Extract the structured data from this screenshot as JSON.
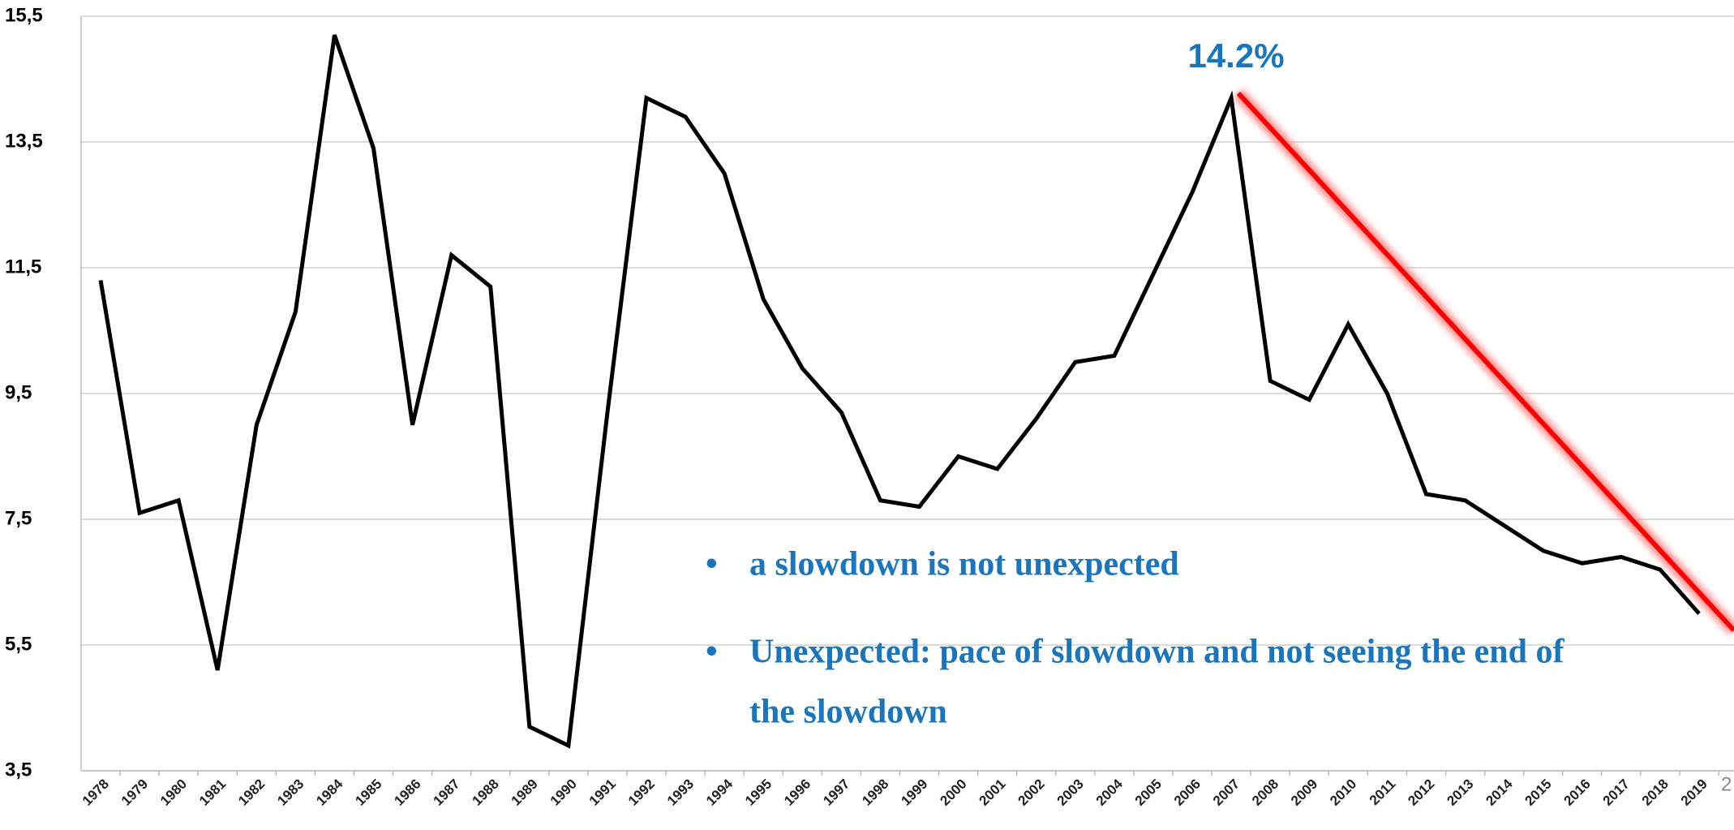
{
  "chart_data": {
    "type": "line",
    "categories": [
      "1978",
      "1979",
      "1980",
      "1981",
      "1982",
      "1983",
      "1984",
      "1985",
      "1986",
      "1987",
      "1988",
      "1989",
      "1990",
      "1991",
      "1992",
      "1993",
      "1994",
      "1995",
      "1996",
      "1997",
      "1998",
      "1999",
      "2000",
      "2001",
      "2002",
      "2003",
      "2004",
      "2005",
      "2006",
      "2007",
      "2008",
      "2009",
      "2010",
      "2011",
      "2012",
      "2013",
      "2014",
      "2015",
      "2016",
      "2017",
      "2018",
      "2019"
    ],
    "series": [
      {
        "color": "#000000",
        "values": [
          11.3,
          7.6,
          7.8,
          5.1,
          9.0,
          10.8,
          15.2,
          13.4,
          9.0,
          11.7,
          11.2,
          4.2,
          3.9,
          9.2,
          14.2,
          13.9,
          13.0,
          11.0,
          9.9,
          9.2,
          7.8,
          7.7,
          8.5,
          8.3,
          9.1,
          10.0,
          10.1,
          11.4,
          12.7,
          14.2,
          9.7,
          9.4,
          10.6,
          9.5,
          7.9,
          7.8,
          7.4,
          7.0,
          6.8,
          6.9,
          6.7,
          6.0
        ]
      }
    ],
    "ylim": [
      3.5,
      15.5
    ],
    "yticks": [
      {
        "value": 3.5,
        "label": "3,5"
      },
      {
        "value": 5.5,
        "label": "5,5"
      },
      {
        "value": 7.5,
        "label": "7,5"
      },
      {
        "value": 9.5,
        "label": "9,5"
      },
      {
        "value": 11.5,
        "label": "11,5"
      },
      {
        "value": 13.5,
        "label": "13,5"
      },
      {
        "value": 15.5,
        "label": "15,5"
      }
    ],
    "grid": true,
    "annotations": [
      "14.2%",
      "a slowdown is not unexpected",
      "Unexpected: pace of slowdown and not seeing the end of",
      "the slowdown"
    ],
    "page_number": "2"
  }
}
